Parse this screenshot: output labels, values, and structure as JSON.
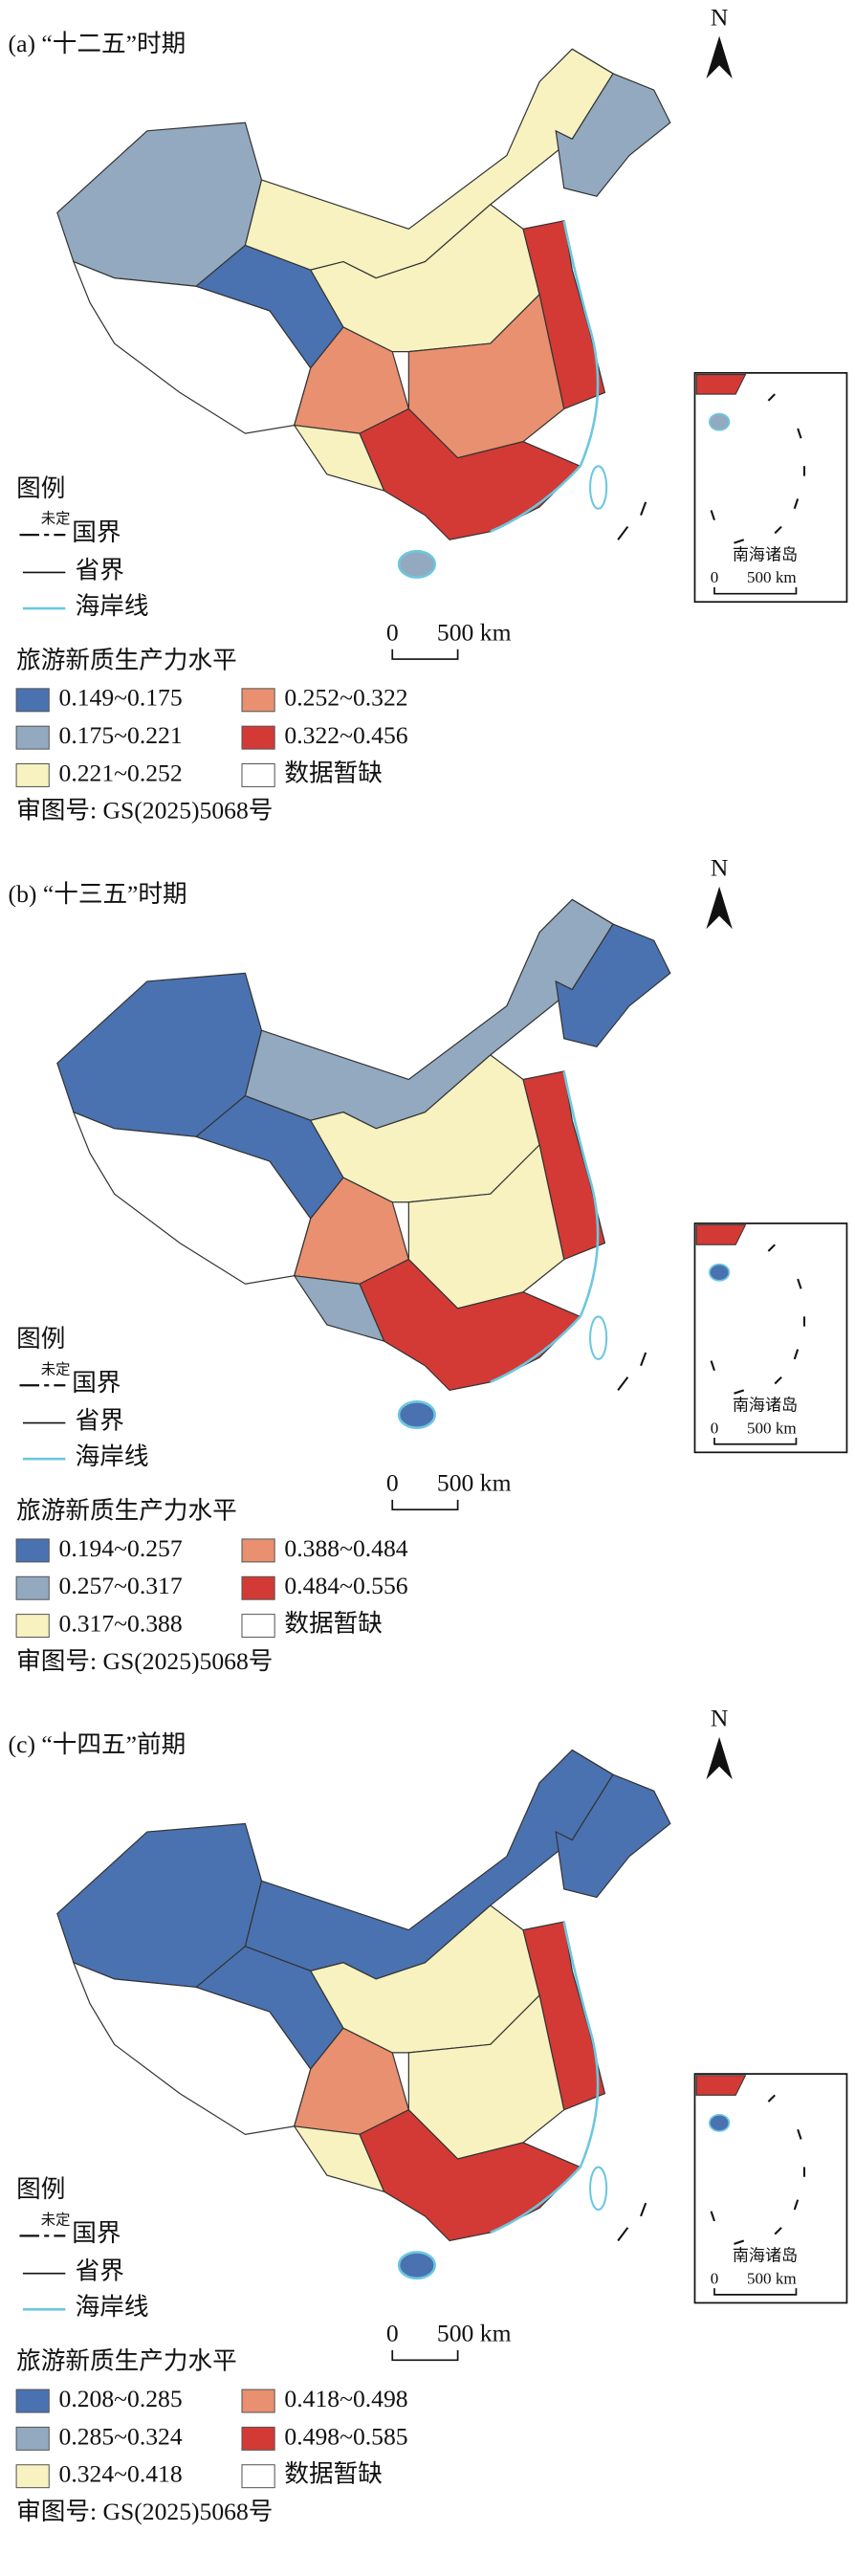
{
  "panels": [
    {
      "title": "(a) “十二五”时期",
      "north": "N",
      "legend_title": "图例",
      "undetermined": "未定",
      "national_border": "国界",
      "provincial_border": "省界",
      "coastline": "海岸线",
      "scale_zero": "0",
      "scale_label": "500 km",
      "index_title": "旅游新质生产力水平",
      "classes": [
        {
          "label": "0.149~0.175",
          "color": "#4a72b0"
        },
        {
          "label": "0.175~0.221",
          "color": "#93a9bf"
        },
        {
          "label": "0.221~0.252",
          "color": "#f7f2c0"
        },
        {
          "label": "0.252~0.322",
          "color": "#e8906f"
        },
        {
          "label": "0.322~0.456",
          "color": "#d33a35"
        }
      ],
      "no_data": "数据暂缺",
      "inset_title": "南海诸岛",
      "inset_scale_zero": "0",
      "inset_scale_label": "500 km",
      "review_number": "审图号: GS(2025)5068号"
    },
    {
      "title": "(b) “十三五”时期",
      "north": "N",
      "legend_title": "图例",
      "undetermined": "未定",
      "national_border": "国界",
      "provincial_border": "省界",
      "coastline": "海岸线",
      "scale_zero": "0",
      "scale_label": "500 km",
      "index_title": "旅游新质生产力水平",
      "classes": [
        {
          "label": "0.194~0.257",
          "color": "#4a72b0"
        },
        {
          "label": "0.257~0.317",
          "color": "#93a9bf"
        },
        {
          "label": "0.317~0.388",
          "color": "#f7f2c0"
        },
        {
          "label": "0.388~0.484",
          "color": "#e8906f"
        },
        {
          "label": "0.484~0.556",
          "color": "#d33a35"
        }
      ],
      "no_data": "数据暂缺",
      "inset_title": "南海诸岛",
      "inset_scale_zero": "0",
      "inset_scale_label": "500 km",
      "review_number": "审图号: GS(2025)5068号"
    },
    {
      "title": "(c) “十四五”前期",
      "north": "N",
      "legend_title": "图例",
      "undetermined": "未定",
      "national_border": "国界",
      "provincial_border": "省界",
      "coastline": "海岸线",
      "scale_zero": "0",
      "scale_label": "500 km",
      "index_title": "旅游新质生产力水平",
      "classes": [
        {
          "label": "0.208~0.285",
          "color": "#4a72b0"
        },
        {
          "label": "0.285~0.324",
          "color": "#93a9bf"
        },
        {
          "label": "0.324~0.418",
          "color": "#f7f2c0"
        },
        {
          "label": "0.418~0.498",
          "color": "#e8906f"
        },
        {
          "label": "0.498~0.585",
          "color": "#d33a35"
        }
      ],
      "no_data": "数据暂缺",
      "inset_title": "南海诸岛",
      "inset_scale_zero": "0",
      "inset_scale_label": "500 km",
      "review_number": "审图号: GS(2025)5068号"
    }
  ]
}
